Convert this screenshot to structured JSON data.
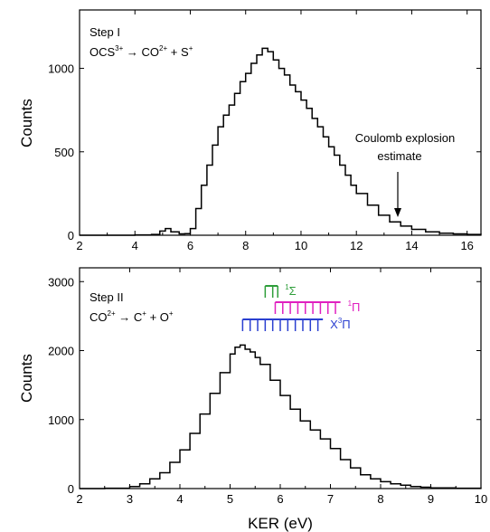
{
  "chart_data": [
    {
      "type": "line",
      "step": "Step I",
      "reaction": {
        "a": "OCS",
        "a_sup": "3+",
        "arrow": "→",
        "b": "CO",
        "b_sup": "2+",
        "plus": "+",
        "c": "S",
        "c_sup": "+"
      },
      "ylabel": "Counts",
      "xlabel": "",
      "xlim": [
        2,
        16.5
      ],
      "ylim": [
        0,
        1350
      ],
      "xticks": [
        2,
        4,
        6,
        8,
        10,
        12,
        14,
        16
      ],
      "yticks": [
        0,
        500,
        1000
      ],
      "annotation": {
        "line1": "Coulomb explosion",
        "line2": "estimate",
        "x": 13.5
      },
      "series": [
        {
          "x": [
            2.0,
            3.0,
            4.0,
            4.6,
            4.9,
            5.1,
            5.3,
            5.6,
            5.8,
            6.0,
            6.2,
            6.4,
            6.6,
            6.8,
            7.0,
            7.2,
            7.4,
            7.6,
            7.8,
            8.0,
            8.2,
            8.4,
            8.6,
            8.8,
            9.0,
            9.2,
            9.4,
            9.6,
            9.8,
            10.0,
            10.2,
            10.4,
            10.6,
            10.8,
            11.0,
            11.2,
            11.4,
            11.6,
            11.8,
            12.0,
            12.4,
            12.8,
            13.2,
            13.6,
            14.0,
            14.5,
            15.0,
            15.5,
            16.0,
            16.5
          ],
          "y": [
            0,
            0,
            2,
            5,
            25,
            40,
            20,
            8,
            10,
            40,
            160,
            300,
            420,
            540,
            650,
            720,
            780,
            850,
            920,
            970,
            1030,
            1080,
            1120,
            1100,
            1050,
            1000,
            960,
            900,
            860,
            810,
            760,
            700,
            650,
            590,
            530,
            480,
            420,
            360,
            300,
            250,
            180,
            120,
            80,
            55,
            35,
            20,
            12,
            8,
            5,
            3
          ]
        }
      ]
    },
    {
      "type": "line",
      "step": "Step II",
      "reaction": {
        "a": "CO",
        "a_sup": "2+",
        "arrow": "→",
        "b": "C",
        "b_sup": "+",
        "plus": "+",
        "c": "O",
        "c_sup": "+"
      },
      "ylabel": "Counts",
      "xlabel": "KER (eV)",
      "xlim": [
        2,
        10
      ],
      "ylim": [
        0,
        3200
      ],
      "xticks": [
        2,
        3,
        4,
        5,
        6,
        7,
        8,
        9,
        10
      ],
      "yticks": [
        0,
        1000,
        2000,
        3000
      ],
      "series": [
        {
          "x": [
            2.0,
            2.5,
            3.0,
            3.2,
            3.4,
            3.6,
            3.8,
            4.0,
            4.2,
            4.4,
            4.6,
            4.8,
            5.0,
            5.1,
            5.2,
            5.3,
            5.4,
            5.5,
            5.6,
            5.8,
            6.0,
            6.2,
            6.4,
            6.6,
            6.8,
            7.0,
            7.2,
            7.4,
            7.6,
            7.8,
            8.0,
            8.2,
            8.4,
            8.6,
            8.8,
            9.0,
            9.5,
            10.0
          ],
          "y": [
            0,
            5,
            30,
            70,
            140,
            230,
            380,
            560,
            800,
            1080,
            1380,
            1680,
            1950,
            2050,
            2080,
            2020,
            1980,
            1900,
            1800,
            1570,
            1350,
            1150,
            980,
            850,
            720,
            580,
            420,
            300,
            200,
            140,
            100,
            70,
            50,
            30,
            20,
            10,
            5,
            2
          ]
        }
      ],
      "states": [
        {
          "label": "1Σ",
          "base": "Σ",
          "sup": "1",
          "color": "#2e9e3a",
          "start": 5.7,
          "end": 5.95,
          "ticks": [
            5.7,
            5.85,
            5.95
          ]
        },
        {
          "label": "1Π",
          "base": "Π",
          "sup": "1",
          "color": "#e020c0",
          "start": 5.9,
          "end": 7.2,
          "ticks": [
            5.9,
            6.05,
            6.2,
            6.35,
            6.5,
            6.65,
            6.8,
            6.95,
            7.1
          ]
        },
        {
          "label": "X3Π",
          "base": "Π",
          "prefix": "X",
          "sup": "3",
          "color": "#2a3fd0",
          "start": 5.25,
          "end": 6.85,
          "ticks": [
            5.25,
            5.4,
            5.55,
            5.7,
            5.85,
            6.0,
            6.15,
            6.3,
            6.45,
            6.6,
            6.75
          ]
        }
      ]
    }
  ]
}
